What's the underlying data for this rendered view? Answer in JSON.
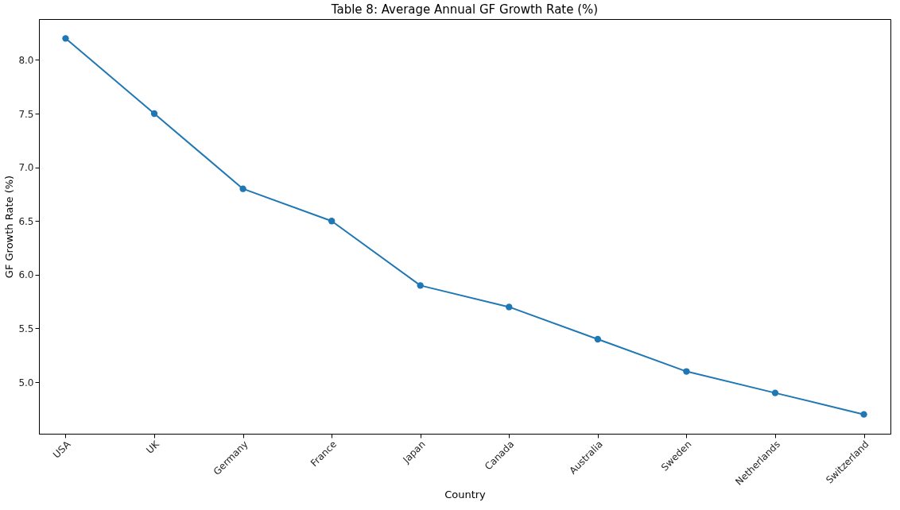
{
  "chart_data": {
    "type": "line",
    "title": "Table 8: Average Annual GF Growth Rate (%)",
    "xlabel": "Country",
    "ylabel": "GF Growth Rate (%)",
    "categories": [
      "USA",
      "UK",
      "Germany",
      "France",
      "Japan",
      "Canada",
      "Australia",
      "Sweden",
      "Netherlands",
      "Switzerland"
    ],
    "series": [
      {
        "color": "#1f77b4",
        "values": [
          8.2,
          7.5,
          6.8,
          6.5,
          5.9,
          5.7,
          5.4,
          5.1,
          4.9,
          4.7
        ]
      }
    ],
    "ylim": [
      4.52,
      8.38
    ],
    "yticks": [
      {
        "value": 5,
        "label": "5.0"
      },
      {
        "value": 5.5,
        "label": "5.5"
      },
      {
        "value": 6,
        "label": "6.0"
      },
      {
        "value": 6.5,
        "label": "6.5"
      },
      {
        "value": 7,
        "label": "7.0"
      },
      {
        "value": 7.5,
        "label": "7.5"
      },
      {
        "value": 8,
        "label": "8.0"
      }
    ],
    "grid": false,
    "marker": "circle",
    "legend": false
  }
}
